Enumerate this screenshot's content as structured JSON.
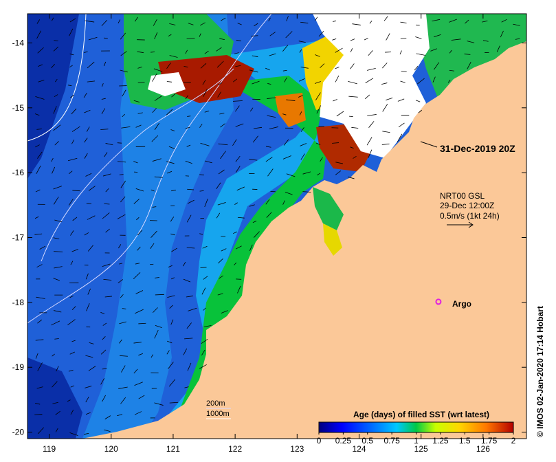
{
  "map": {
    "lon_ticks": [
      "119",
      "120",
      "121",
      "122",
      "123",
      "124",
      "125",
      "126"
    ],
    "lat_ticks": [
      "-14",
      "-15",
      "-16",
      "-17",
      "-18",
      "-19",
      "-20"
    ],
    "lon_range": [
      118.65,
      126.7
    ],
    "lat_range": [
      -20.1,
      -13.55
    ],
    "date_label": "31-Dec-2019 20Z",
    "current_source_lines": [
      "NRT00 GSL",
      "29-Dec 12:00Z",
      "0.5m/s (1kt 24h)"
    ],
    "argo_label": "Argo",
    "argo_position": {
      "lon": 125.28,
      "lat": -17.99
    },
    "contour_labels": [
      "200m",
      "1000m"
    ],
    "colorbar": {
      "title": "Age (days) of filled SST (wrt latest)",
      "ticks": [
        "0",
        "0.25",
        "0.5",
        "0.75",
        "1",
        "1.25",
        "1.5",
        "1.75",
        "2"
      ],
      "range": [
        0,
        2
      ]
    },
    "copyright": "© IMOS 02-Jan-2020 17:14 Hobart",
    "colors": {
      "land": "#fbc898",
      "no_data": "#ffffff",
      "argo_marker": "#e020e0",
      "contour": "#ffffff"
    }
  }
}
